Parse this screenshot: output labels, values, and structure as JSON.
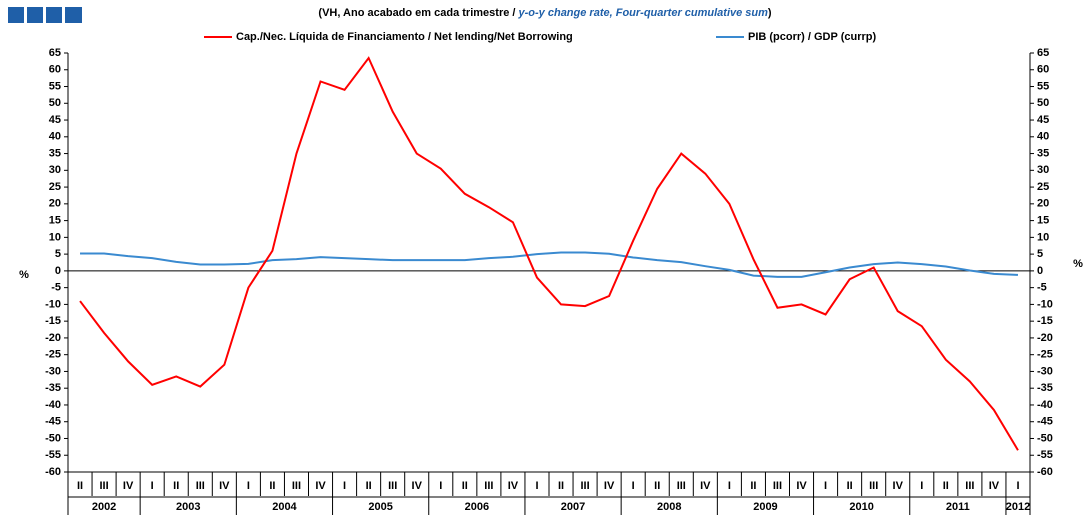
{
  "chart_data": {
    "type": "line",
    "title_parts": [
      "(VH, Ano acabado em cada trimestre /",
      "y-o-y change rate,",
      "Four-quarter cumulative sum",
      ")"
    ],
    "y_label": "%",
    "categories": [
      "II",
      "III",
      "IV",
      "I",
      "II",
      "III",
      "IV",
      "I",
      "II",
      "III",
      "IV",
      "I",
      "II",
      "III",
      "IV",
      "I",
      "II",
      "III",
      "IV",
      "I",
      "II",
      "III",
      "IV",
      "I",
      "II",
      "III",
      "IV",
      "I",
      "II",
      "III",
      "IV",
      "I",
      "II",
      "III",
      "IV",
      "I",
      "II",
      "III",
      "IV",
      "I"
    ],
    "years": [
      "2002",
      "2003",
      "2004",
      "2005",
      "2006",
      "2007",
      "2008",
      "2009",
      "2010",
      "2011",
      "2012"
    ],
    "series": [
      {
        "name": "Cap./Nec. Líquida de Financiamento / Net lending/Net Borrowing",
        "color": "#ff0000",
        "values": [
          -9,
          -18.5,
          -27,
          -34,
          -31.5,
          -34.5,
          -28,
          -5,
          6,
          35,
          56.5,
          54,
          63.5,
          47.5,
          35,
          30.5,
          23,
          19,
          14.5,
          -2,
          -10,
          -10.5,
          -7.5,
          9,
          24.5,
          35,
          29,
          20,
          3.5,
          -11,
          -10,
          -13,
          -2.5,
          1,
          -12,
          -16.5,
          -26.5,
          -33,
          -41.5,
          -53.5
        ]
      },
      {
        "name": "PIB (pcorr) / GDP (currp)",
        "color": "#3a8ad0",
        "values": [
          5.2,
          5.2,
          4.4,
          3.8,
          2.7,
          1.9,
          1.9,
          2.1,
          3.2,
          3.5,
          4.1,
          3.8,
          3.5,
          3.2,
          3.2,
          3.2,
          3.2,
          3.8,
          4.2,
          5,
          5.5,
          5.5,
          5.1,
          4,
          3.2,
          2.6,
          1.4,
          0.3,
          -1.4,
          -1.8,
          -1.8,
          -0.4,
          1,
          2,
          2.5,
          2,
          1.3,
          0.1,
          -0.9,
          -1.2
        ]
      }
    ],
    "ylim": [
      -60,
      65
    ],
    "yticks": [
      -60,
      -55,
      -50,
      -45,
      -40,
      -35,
      -30,
      -25,
      -20,
      -15,
      -10,
      -5,
      0,
      5,
      10,
      15,
      20,
      25,
      30,
      35,
      40,
      45,
      50,
      55,
      60,
      65
    ]
  }
}
